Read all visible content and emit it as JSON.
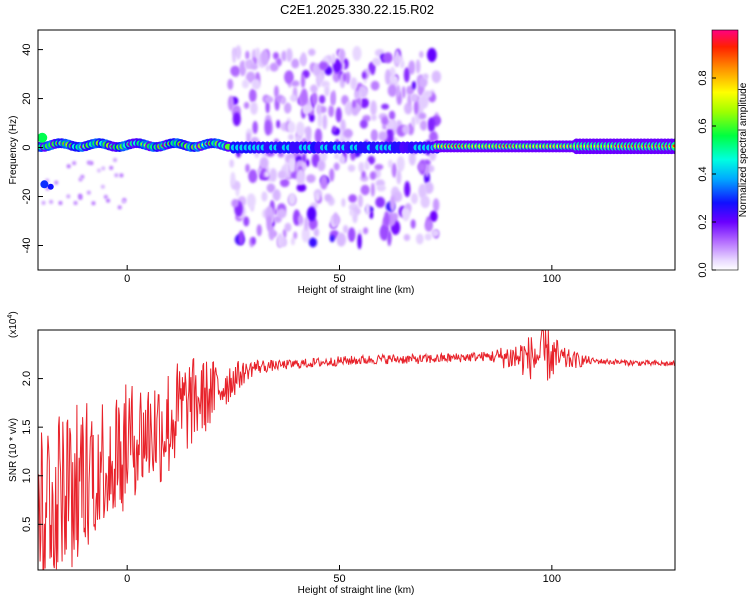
{
  "title": "C2E1.2025.330.22.15.R02",
  "colors": {
    "line": "#e8222a",
    "frame": "#000000"
  },
  "chart_data": [
    {
      "type": "heatmap",
      "xlabel": "Height of straight line (km)",
      "ylabel": "Frequency (Hz)",
      "xlim": [
        -21,
        129
      ],
      "ylim": [
        -50,
        48
      ],
      "xticks": [
        0,
        50,
        100
      ],
      "xtick_labels": [
        "0",
        "50",
        "100"
      ],
      "yticks": [
        40,
        20,
        0,
        -20,
        -40
      ],
      "ytick_labels": [
        "40",
        "20",
        "0",
        "-20",
        "-40"
      ],
      "colorbar": {
        "label": "Normalized spectral amplitude",
        "range": [
          0,
          1
        ],
        "ticks": [
          0.0,
          0.2,
          0.4,
          0.6,
          0.8
        ],
        "tick_labels": [
          "0.0",
          "0.2",
          "0.4",
          "0.6",
          "0.8"
        ],
        "colormap": "rainbow (white-violet-blue-cyan-green-yellow-orange-red)"
      },
      "description_regions": [
        {
          "x_range": [
            -21,
            24
          ],
          "freq_center": 1,
          "freq_spread": 3,
          "amplitude": "0.6-1.0"
        },
        {
          "x_range": [
            -20,
            -16
          ],
          "freq_center": -15,
          "freq_spread": 2,
          "amplitude": "0.3-0.5"
        },
        {
          "x_range": [
            24,
            73
          ],
          "freq_center": 0,
          "freq_spread": 40,
          "amplitude": "0.05-0.35"
        },
        {
          "x_range": [
            73,
            129
          ],
          "freq_center": 0.5,
          "freq_spread": 2,
          "amplitude": "0.5-1.0"
        }
      ]
    },
    {
      "type": "line",
      "xlabel": "Height of straight line (km)",
      "ylabel": "SNR (10 * v/v)",
      "y_multiplier": "(x10^4)",
      "multiplier_base": "(x10",
      "multiplier_exp": "4",
      "multiplier_close": ")",
      "xlim": [
        -21,
        129
      ],
      "ylim": [
        0.03,
        2.5
      ],
      "xticks": [
        0,
        50,
        100
      ],
      "xtick_labels": [
        "0",
        "50",
        "100"
      ],
      "yticks": [
        0.5,
        1.0,
        1.5,
        2.0
      ],
      "ytick_labels": [
        "0.5",
        "1.0",
        "1.5",
        "2.0"
      ],
      "series": [
        {
          "name": "SNR",
          "description": "Highly noisy and low (0.1-1.9) at heights below 10 km, rising steadily through 10-30 km, plateauing near 2.15-2.2 from 30 km onward, with oscillations near 85-100 km peaking at about 2.5 near 99 km.",
          "anchor_x": [
            -21,
            -15,
            -10,
            -5,
            0,
            5,
            8,
            10,
            12,
            15,
            20,
            25,
            30,
            40,
            50,
            60,
            70,
            80,
            85,
            90,
            95,
            99,
            102,
            110,
            120,
            129
          ],
          "anchor_y": [
            0.8,
            0.9,
            1.1,
            1.2,
            1.35,
            1.45,
            1.5,
            1.55,
            1.65,
            1.75,
            1.85,
            2.0,
            2.12,
            2.15,
            2.18,
            2.2,
            2.2,
            2.22,
            2.23,
            2.22,
            2.22,
            2.25,
            2.2,
            2.18,
            2.16,
            2.15
          ],
          "noise_amplitude_by_x": [
            [
              -21,
              0.9
            ],
            [
              0,
              0.6
            ],
            [
              10,
              0.6
            ],
            [
              20,
              0.35
            ],
            [
              28,
              0.1
            ],
            [
              35,
              0.05
            ],
            [
              85,
              0.05
            ],
            [
              92,
              0.18
            ],
            [
              99,
              0.3
            ],
            [
              103,
              0.12
            ],
            [
              110,
              0.03
            ],
            [
              129,
              0.03
            ]
          ]
        }
      ]
    }
  ]
}
